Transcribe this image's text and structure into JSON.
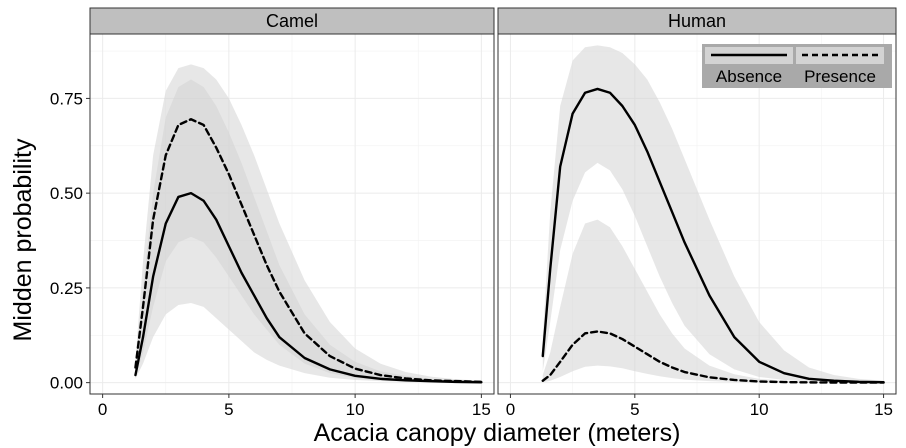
{
  "chart_data": {
    "type": "line",
    "xlabel": "Acacia canopy diameter (meters)",
    "ylabel": "Midden probability",
    "xlim": [
      -0.5,
      15.5
    ],
    "ylim": [
      -0.03,
      0.92
    ],
    "x_ticks": [
      0,
      5,
      10,
      15
    ],
    "y_ticks": [
      0.0,
      0.25,
      0.5,
      0.75
    ],
    "y_tick_labels": [
      "0.00",
      "0.25",
      "0.50",
      "0.75"
    ],
    "grid": true,
    "legend": {
      "placement": "top-right of Human panel",
      "entries": [
        {
          "label": "Absence",
          "linestyle": "solid"
        },
        {
          "label": "Presence",
          "linestyle": "dashed"
        }
      ]
    },
    "colors": {
      "ribbon": "#d3d3d3",
      "ribbon_overlap": "#a9a9a9",
      "strip_bg": "#bfbfbf",
      "line": "#000000"
    },
    "panels": [
      {
        "strip": "Camel",
        "series": [
          {
            "name": "Absence",
            "linestyle": "solid",
            "x": [
              1.3,
              1.6,
              2.0,
              2.5,
              3.0,
              3.5,
              4.0,
              4.5,
              5.0,
              5.5,
              6.0,
              6.5,
              7.0,
              8.0,
              9.0,
              10.0,
              11.0,
              12.0,
              13.0,
              14.0,
              15.0
            ],
            "y": [
              0.02,
              0.12,
              0.28,
              0.42,
              0.49,
              0.5,
              0.48,
              0.43,
              0.36,
              0.29,
              0.23,
              0.17,
              0.12,
              0.065,
              0.035,
              0.018,
              0.01,
              0.006,
              0.004,
              0.002,
              0.001
            ],
            "lower": [
              0.01,
              0.05,
              0.12,
              0.18,
              0.205,
              0.21,
              0.2,
              0.17,
              0.14,
              0.11,
              0.08,
              0.06,
              0.045,
              0.025,
              0.013,
              0.007,
              0.004,
              0.002,
              0.001,
              0.0005,
              0.0002
            ],
            "upper": [
              0.04,
              0.25,
              0.5,
              0.7,
              0.78,
              0.8,
              0.78,
              0.73,
              0.66,
              0.58,
              0.49,
              0.4,
              0.31,
              0.18,
              0.1,
              0.055,
              0.03,
              0.018,
              0.01,
              0.006,
              0.003
            ]
          },
          {
            "name": "Presence",
            "linestyle": "dashed",
            "x": [
              1.3,
              1.6,
              2.0,
              2.5,
              3.0,
              3.5,
              4.0,
              4.5,
              5.0,
              5.5,
              6.0,
              6.5,
              7.0,
              8.0,
              9.0,
              10.0,
              11.0,
              12.0,
              13.0,
              14.0,
              15.0
            ],
            "y": [
              0.04,
              0.2,
              0.43,
              0.6,
              0.68,
              0.695,
              0.68,
              0.62,
              0.55,
              0.47,
              0.39,
              0.31,
              0.24,
              0.13,
              0.07,
              0.037,
              0.02,
              0.011,
              0.006,
              0.004,
              0.002
            ],
            "lower": [
              0.015,
              0.08,
              0.2,
              0.32,
              0.37,
              0.385,
              0.37,
              0.33,
              0.28,
              0.23,
              0.18,
              0.14,
              0.1,
              0.05,
              0.025,
              0.012,
              0.006,
              0.003,
              0.002,
              0.001,
              0.0005
            ],
            "upper": [
              0.06,
              0.32,
              0.6,
              0.77,
              0.83,
              0.84,
              0.83,
              0.8,
              0.75,
              0.68,
              0.6,
              0.51,
              0.42,
              0.27,
              0.16,
              0.09,
              0.05,
              0.028,
              0.016,
              0.009,
              0.005
            ]
          }
        ]
      },
      {
        "strip": "Human",
        "series": [
          {
            "name": "Absence",
            "linestyle": "solid",
            "x": [
              1.3,
              1.6,
              2.0,
              2.5,
              3.0,
              3.5,
              4.0,
              4.5,
              5.0,
              5.5,
              6.0,
              6.5,
              7.0,
              8.0,
              9.0,
              10.0,
              11.0,
              12.0,
              13.0,
              14.0,
              15.0
            ],
            "y": [
              0.07,
              0.3,
              0.57,
              0.71,
              0.765,
              0.775,
              0.765,
              0.73,
              0.68,
              0.61,
              0.53,
              0.45,
              0.37,
              0.23,
              0.12,
              0.055,
              0.025,
              0.01,
              0.005,
              0.002,
              0.001
            ],
            "lower": [
              0.03,
              0.16,
              0.35,
              0.48,
              0.555,
              0.58,
              0.56,
              0.51,
              0.44,
              0.36,
              0.28,
              0.21,
              0.15,
              0.075,
              0.035,
              0.015,
              0.007,
              0.003,
              0.0015,
              0.0007,
              0.0003
            ],
            "upper": [
              0.12,
              0.45,
              0.73,
              0.85,
              0.885,
              0.89,
              0.885,
              0.87,
              0.84,
              0.8,
              0.74,
              0.67,
              0.59,
              0.43,
              0.28,
              0.16,
              0.085,
              0.04,
              0.02,
              0.01,
              0.005
            ]
          },
          {
            "name": "Presence",
            "linestyle": "dashed",
            "x": [
              1.3,
              1.6,
              2.0,
              2.5,
              3.0,
              3.5,
              4.0,
              4.5,
              5.0,
              5.5,
              6.0,
              6.5,
              7.0,
              8.0,
              9.0,
              10.0,
              11.0,
              12.0,
              13.0,
              14.0,
              15.0
            ],
            "y": [
              0.005,
              0.02,
              0.055,
              0.1,
              0.13,
              0.135,
              0.13,
              0.115,
              0.095,
              0.075,
              0.055,
              0.04,
              0.028,
              0.014,
              0.007,
              0.003,
              0.0015,
              0.0007,
              0.0003,
              0.0002,
              0.0001
            ],
            "lower": [
              0.001,
              0.005,
              0.015,
              0.03,
              0.042,
              0.045,
              0.043,
              0.038,
              0.03,
              0.023,
              0.017,
              0.012,
              0.008,
              0.004,
              0.002,
              0.0008,
              0.0004,
              0.0002,
              0.0001,
              5e-05,
              2e-05
            ],
            "upper": [
              0.02,
              0.08,
              0.2,
              0.34,
              0.42,
              0.43,
              0.41,
              0.36,
              0.3,
              0.24,
              0.18,
              0.13,
              0.09,
              0.045,
              0.022,
              0.01,
              0.005,
              0.0025,
              0.0012,
              0.0006,
              0.0003
            ]
          }
        ]
      }
    ]
  }
}
